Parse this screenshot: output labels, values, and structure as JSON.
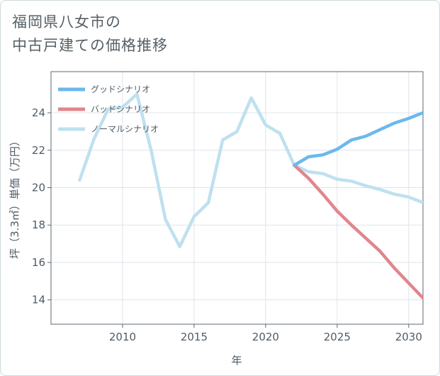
{
  "chart_data": {
    "type": "line",
    "title": [
      "福岡県八女市の",
      "中古戸建ての価格推移"
    ],
    "xlabel": "年",
    "ylabel": "坪（3.3㎡）単価（万円）",
    "xlim": [
      2005,
      2031
    ],
    "ylim": [
      12.7,
      26.2
    ],
    "xticks": [
      2010,
      2015,
      2020,
      2025,
      2030
    ],
    "yticks": [
      14,
      16,
      18,
      20,
      22,
      24
    ],
    "grid": true,
    "legend_position": "top-left",
    "series": [
      {
        "name": "グッドシナリオ",
        "color": "#6cb8ee",
        "x": [
          2022,
          2023,
          2024,
          2025,
          2026,
          2027,
          2028,
          2029,
          2030,
          2031
        ],
        "y": [
          21.2,
          21.65,
          21.75,
          22.05,
          22.55,
          22.75,
          23.1,
          23.45,
          23.7,
          24.0
        ]
      },
      {
        "name": "バッドシナリオ",
        "color": "#e0868e",
        "x": [
          2022,
          2023,
          2024,
          2025,
          2026,
          2027,
          2028,
          2029,
          2030,
          2031
        ],
        "y": [
          21.2,
          20.5,
          19.65,
          18.75,
          18.0,
          17.3,
          16.6,
          15.7,
          14.9,
          14.1
        ]
      },
      {
        "name": "ノーマルシナリオ",
        "color": "#bfe0ef",
        "x": [
          2007,
          2008,
          2009,
          2010,
          2011,
          2012,
          2013,
          2014,
          2015,
          2016,
          2017,
          2018,
          2019,
          2020,
          2021,
          2022,
          2023,
          2024,
          2025,
          2026,
          2027,
          2028,
          2029,
          2030,
          2031
        ],
        "y": [
          20.4,
          22.6,
          24.2,
          24.3,
          25.0,
          22.0,
          18.3,
          16.85,
          18.45,
          19.2,
          22.55,
          23.0,
          24.8,
          23.35,
          22.9,
          21.2,
          20.85,
          20.75,
          20.45,
          20.35,
          20.1,
          19.9,
          19.65,
          19.5,
          19.2
        ]
      }
    ]
  }
}
